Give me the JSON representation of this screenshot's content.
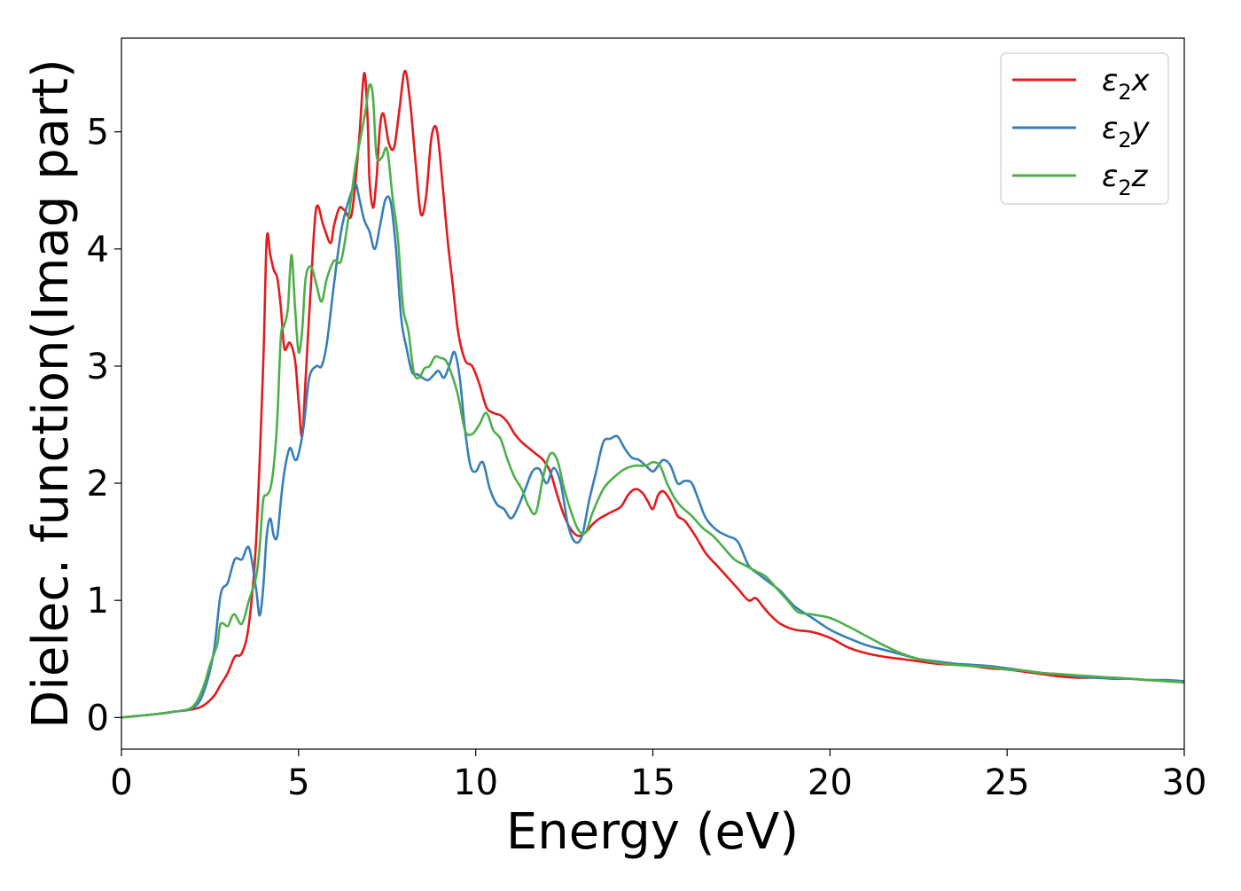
{
  "chart_data": {
    "type": "line",
    "xlabel": "Energy (eV)",
    "ylabel": "Dielec. function(Imag part)",
    "xlim": [
      0,
      30
    ],
    "ylim": [
      -0.27,
      5.8
    ],
    "xticks": [
      0,
      5,
      10,
      15,
      20,
      25,
      30
    ],
    "yticks": [
      0,
      1,
      2,
      3,
      4,
      5
    ],
    "grid": false,
    "legend_position": "top-right",
    "series": [
      {
        "name": "ε₂x",
        "legend": {
          "base": "ε",
          "sub": "2",
          "tail": "x"
        },
        "color": "#e41a1c",
        "x": [
          0,
          1,
          1.5,
          2,
          2.3,
          2.6,
          2.8,
          3,
          3.2,
          3.4,
          3.6,
          3.8,
          4,
          4.1,
          4.2,
          4.3,
          4.4,
          4.5,
          4.6,
          4.75,
          4.9,
          5,
          5.1,
          5.2,
          5.35,
          5.5,
          5.7,
          5.9,
          6,
          6.15,
          6.3,
          6.5,
          6.7,
          6.85,
          6.95,
          7,
          7.1,
          7.2,
          7.3,
          7.4,
          7.55,
          7.7,
          7.85,
          8,
          8.15,
          8.3,
          8.45,
          8.6,
          8.75,
          8.9,
          9.05,
          9.2,
          9.35,
          9.5,
          9.7,
          9.9,
          10.1,
          10.3,
          10.5,
          10.7,
          10.9,
          11.1,
          11.3,
          11.5,
          11.7,
          11.9,
          12.1,
          12.3,
          12.5,
          12.7,
          12.9,
          13.1,
          13.3,
          13.5,
          13.8,
          14.1,
          14.3,
          14.5,
          14.7,
          14.85,
          15,
          15.15,
          15.3,
          15.5,
          15.7,
          15.9,
          16.2,
          16.5,
          16.8,
          17.1,
          17.4,
          17.7,
          17.9,
          18.1,
          18.3,
          18.6,
          19,
          19.5,
          20,
          20.5,
          21,
          21.5,
          22,
          22.5,
          23,
          23.5,
          24,
          24.5,
          25,
          25.5,
          26,
          26.5,
          27,
          27.5,
          28,
          28.5,
          29,
          29.5,
          30
        ],
        "y": [
          0,
          0.03,
          0.05,
          0.07,
          0.1,
          0.18,
          0.28,
          0.38,
          0.52,
          0.55,
          0.8,
          1.5,
          3.0,
          4.08,
          3.95,
          3.82,
          3.75,
          3.5,
          3.15,
          3.2,
          3.05,
          2.7,
          2.4,
          2.9,
          3.7,
          4.35,
          4.2,
          4.05,
          4.2,
          4.35,
          4.33,
          4.3,
          4.9,
          5.5,
          5.1,
          4.6,
          4.35,
          4.6,
          5.05,
          5.15,
          4.9,
          4.87,
          5.2,
          5.52,
          5.25,
          4.75,
          4.3,
          4.45,
          4.95,
          5.02,
          4.6,
          4.1,
          3.7,
          3.3,
          3.05,
          3.0,
          2.85,
          2.65,
          2.6,
          2.58,
          2.52,
          2.42,
          2.35,
          2.3,
          2.25,
          2.2,
          2.1,
          1.9,
          1.72,
          1.6,
          1.55,
          1.58,
          1.65,
          1.7,
          1.75,
          1.8,
          1.9,
          1.95,
          1.92,
          1.85,
          1.78,
          1.9,
          1.93,
          1.85,
          1.72,
          1.68,
          1.55,
          1.4,
          1.3,
          1.2,
          1.1,
          1.0,
          1.02,
          0.95,
          0.88,
          0.8,
          0.75,
          0.73,
          0.68,
          0.6,
          0.55,
          0.52,
          0.5,
          0.48,
          0.46,
          0.45,
          0.44,
          0.42,
          0.41,
          0.39,
          0.37,
          0.35,
          0.34,
          0.34,
          0.34,
          0.33,
          0.32,
          0.31,
          0.3
        ]
      },
      {
        "name": "ε₂y",
        "legend": {
          "base": "ε",
          "sub": "2",
          "tail": "y"
        },
        "color": "#377eb8",
        "x": [
          0,
          1,
          1.5,
          2,
          2.3,
          2.6,
          2.8,
          3,
          3.2,
          3.4,
          3.6,
          3.8,
          3.9,
          4,
          4.1,
          4.2,
          4.3,
          4.4,
          4.5,
          4.6,
          4.75,
          4.9,
          5,
          5.15,
          5.3,
          5.5,
          5.65,
          5.8,
          6,
          6.2,
          6.4,
          6.6,
          6.7,
          6.85,
          7,
          7.15,
          7.3,
          7.45,
          7.6,
          7.75,
          7.9,
          8.05,
          8.2,
          8.35,
          8.5,
          8.65,
          8.8,
          8.95,
          9.1,
          9.25,
          9.4,
          9.55,
          9.7,
          9.85,
          10,
          10.2,
          10.4,
          10.6,
          10.8,
          11,
          11.2,
          11.4,
          11.6,
          11.8,
          12,
          12.2,
          12.4,
          12.6,
          12.8,
          13,
          13.2,
          13.4,
          13.6,
          13.8,
          14,
          14.2,
          14.4,
          14.6,
          14.8,
          15,
          15.15,
          15.3,
          15.5,
          15.7,
          15.9,
          16.1,
          16.3,
          16.5,
          16.8,
          17.1,
          17.4,
          17.7,
          18,
          18.3,
          18.6,
          19,
          19.5,
          20,
          20.5,
          21,
          21.5,
          22,
          22.5,
          23,
          23.5,
          24,
          24.5,
          25,
          25.5,
          26,
          26.5,
          27,
          27.5,
          28,
          28.5,
          29,
          29.5,
          30
        ],
        "y": [
          0,
          0.03,
          0.05,
          0.08,
          0.2,
          0.55,
          1.05,
          1.15,
          1.35,
          1.35,
          1.45,
          1.1,
          0.87,
          1.1,
          1.55,
          1.7,
          1.55,
          1.55,
          1.85,
          2.1,
          2.3,
          2.2,
          2.25,
          2.5,
          2.9,
          3.0,
          3.0,
          3.2,
          3.7,
          4.15,
          4.4,
          4.55,
          4.45,
          4.25,
          4.15,
          4.0,
          4.2,
          4.42,
          4.4,
          4.0,
          3.4,
          3.15,
          2.95,
          2.93,
          2.9,
          2.88,
          2.92,
          2.96,
          2.9,
          3.0,
          3.12,
          2.9,
          2.45,
          2.15,
          2.1,
          2.18,
          1.95,
          1.82,
          1.78,
          1.7,
          1.8,
          1.95,
          2.1,
          2.12,
          2.0,
          2.13,
          2.0,
          1.65,
          1.5,
          1.55,
          1.85,
          2.1,
          2.35,
          2.38,
          2.4,
          2.3,
          2.22,
          2.2,
          2.15,
          2.1,
          2.15,
          2.2,
          2.15,
          2.0,
          2.02,
          2.0,
          1.85,
          1.7,
          1.6,
          1.55,
          1.5,
          1.3,
          1.22,
          1.15,
          1.08,
          0.95,
          0.85,
          0.75,
          0.68,
          0.62,
          0.58,
          0.54,
          0.5,
          0.48,
          0.46,
          0.45,
          0.44,
          0.42,
          0.4,
          0.38,
          0.37,
          0.35,
          0.34,
          0.33,
          0.33,
          0.32,
          0.32,
          0.31
        ]
      },
      {
        "name": "ε₂z",
        "legend": {
          "base": "ε",
          "sub": "2",
          "tail": "z"
        },
        "color": "#4daf4a",
        "x": [
          0,
          1,
          1.5,
          2,
          2.3,
          2.5,
          2.7,
          2.8,
          3,
          3.1,
          3.2,
          3.4,
          3.6,
          3.8,
          3.9,
          4,
          4.1,
          4.2,
          4.3,
          4.4,
          4.5,
          4.6,
          4.7,
          4.8,
          4.9,
          5,
          5.1,
          5.2,
          5.35,
          5.5,
          5.65,
          5.8,
          6,
          6.2,
          6.4,
          6.6,
          6.75,
          6.9,
          7,
          7.1,
          7.2,
          7.35,
          7.5,
          7.65,
          7.8,
          7.95,
          8.1,
          8.25,
          8.4,
          8.55,
          8.7,
          8.85,
          9,
          9.15,
          9.3,
          9.5,
          9.7,
          9.9,
          10.1,
          10.3,
          10.5,
          10.7,
          10.9,
          11.1,
          11.3,
          11.5,
          11.7,
          11.9,
          12.1,
          12.3,
          12.5,
          12.7,
          12.9,
          13.1,
          13.3,
          13.6,
          13.9,
          14.2,
          14.5,
          14.8,
          15,
          15.2,
          15.4,
          15.6,
          15.8,
          16.1,
          16.4,
          16.7,
          17,
          17.3,
          17.6,
          17.9,
          18.2,
          18.5,
          18.8,
          19.1,
          19.5,
          20,
          20.5,
          21,
          21.5,
          22,
          22.5,
          23,
          23.5,
          24,
          24.5,
          25,
          25.5,
          26,
          26.5,
          27,
          27.5,
          28,
          28.5,
          29,
          29.5,
          30
        ],
        "y": [
          0,
          0.03,
          0.05,
          0.09,
          0.25,
          0.45,
          0.62,
          0.8,
          0.78,
          0.85,
          0.88,
          0.8,
          1.0,
          1.2,
          1.45,
          1.85,
          1.9,
          1.95,
          2.15,
          2.55,
          3.25,
          3.35,
          3.5,
          3.95,
          3.5,
          3.12,
          3.3,
          3.75,
          3.85,
          3.7,
          3.55,
          3.75,
          3.9,
          3.9,
          4.25,
          4.7,
          4.95,
          5.2,
          5.4,
          5.3,
          4.8,
          4.78,
          4.85,
          4.45,
          4.1,
          3.5,
          3.3,
          2.95,
          2.9,
          2.98,
          3.0,
          3.08,
          3.07,
          3.05,
          2.95,
          2.75,
          2.45,
          2.42,
          2.5,
          2.6,
          2.45,
          2.38,
          2.2,
          2.05,
          1.95,
          1.8,
          1.75,
          2.05,
          2.25,
          2.2,
          1.95,
          1.75,
          1.6,
          1.58,
          1.75,
          1.95,
          2.05,
          2.12,
          2.15,
          2.15,
          2.18,
          2.15,
          2.0,
          1.88,
          1.8,
          1.72,
          1.62,
          1.55,
          1.45,
          1.35,
          1.3,
          1.25,
          1.2,
          1.1,
          1.0,
          0.9,
          0.88,
          0.85,
          0.78,
          0.7,
          0.62,
          0.55,
          0.5,
          0.47,
          0.45,
          0.44,
          0.43,
          0.41,
          0.4,
          0.38,
          0.37,
          0.36,
          0.35,
          0.34,
          0.33,
          0.32,
          0.31,
          0.3
        ]
      }
    ]
  }
}
